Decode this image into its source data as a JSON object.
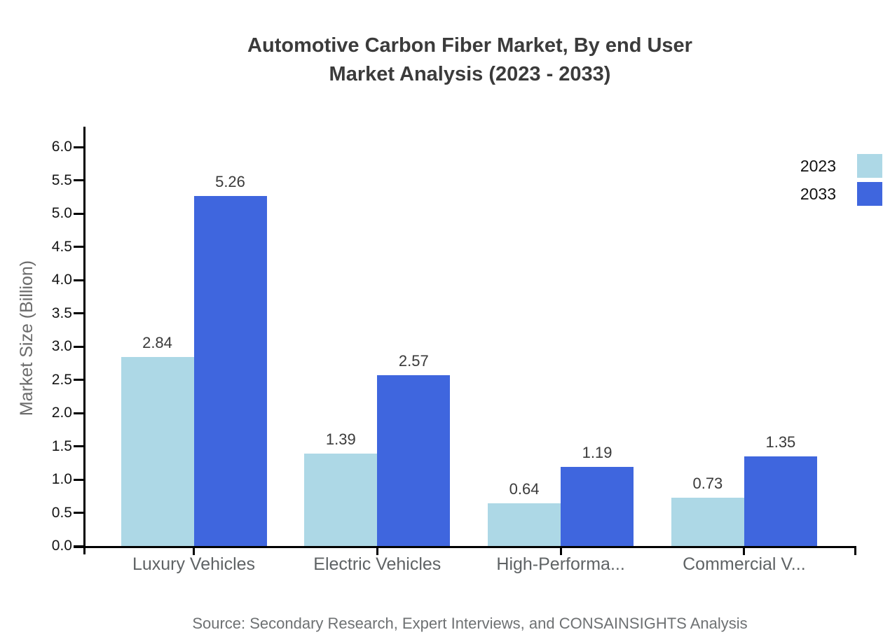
{
  "title": {
    "line1": "Automotive Carbon Fiber Market, By end User",
    "line2": "Market Analysis (2023 - 2033)"
  },
  "source": "Source: Secondary Research, Expert Interviews, and CONSAINSIGHTS Analysis",
  "chart_data": {
    "type": "bar",
    "title": "Automotive Carbon Fiber Market, By end User Market Analysis (2023 - 2033)",
    "categories": [
      "Luxury Vehicles",
      "Electric Vehicles",
      "High-Performa...",
      "Commercial V..."
    ],
    "series": [
      {
        "name": "2023",
        "color": "#add8e6",
        "values": [
          2.84,
          1.39,
          0.64,
          0.73
        ]
      },
      {
        "name": "2033",
        "color": "#3f66de",
        "values": [
          5.26,
          2.57,
          1.19,
          1.35
        ]
      }
    ],
    "xlabel": "",
    "ylabel": "Market Size (Billion)",
    "ylim": [
      0,
      6.0
    ],
    "ytick_step": 0.5,
    "grid": false,
    "legend_position": "top-right",
    "value_labels": true
  }
}
